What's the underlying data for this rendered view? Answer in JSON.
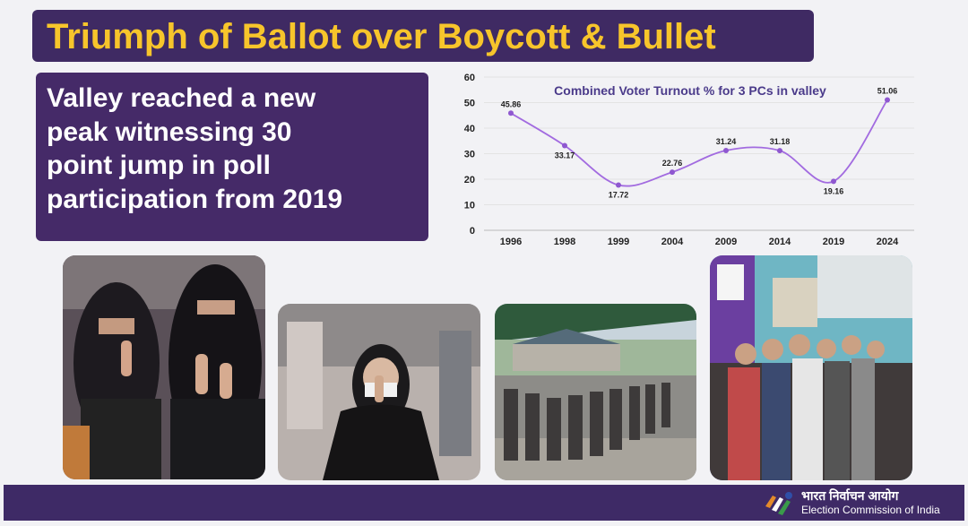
{
  "header": {
    "title": "Triumph of Ballot over Boycott & Bullet"
  },
  "highlight": {
    "text": "Valley reached a new\npeak witnessing 30\npoint jump in poll\nparticipation from 2019"
  },
  "colors": {
    "purple_dark": "#3f2a63",
    "title_yellow": "#f7c52b",
    "line": "#a26be0",
    "chart_title": "#4a3a8a"
  },
  "chart_data": {
    "type": "line",
    "title": "Combined Voter Turnout % for 3 PCs in valley",
    "categories": [
      "1996",
      "1998",
      "1999",
      "2004",
      "2009",
      "2014",
      "2019",
      "2024"
    ],
    "series": [
      {
        "values": [
          45.86,
          33.17,
          17.72,
          22.76,
          31.24,
          31.18,
          19.16,
          51.06
        ],
        "labels": [
          "45.86",
          "33.17",
          "17.72",
          "22.76",
          "31.24",
          "31.18",
          "19.16",
          "51.06"
        ]
      }
    ],
    "ylim": [
      0,
      60
    ],
    "yticks": [
      0,
      10,
      20,
      30,
      40,
      50,
      60
    ],
    "ytick_labels": [
      "0",
      "10",
      "20",
      "30",
      "40",
      "50",
      "60"
    ],
    "grid": true,
    "xlabel": "",
    "ylabel": ""
  },
  "photos": [
    {
      "name": "photo-women-showing-inked-fingers",
      "icon": "photo-icon"
    },
    {
      "name": "photo-woman-in-hijab",
      "icon": "photo-icon"
    },
    {
      "name": "photo-voter-queue-outside-booth",
      "icon": "photo-icon"
    },
    {
      "name": "photo-men-in-queue",
      "icon": "photo-icon"
    }
  ],
  "footer": {
    "org_hindi": "भारत निर्वाचन आयोग",
    "org_english": "Election Commission of India",
    "logo_icon": "eci-logo-icon"
  }
}
